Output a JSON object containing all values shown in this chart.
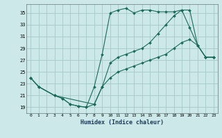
{
  "xlabel": "Humidex (Indice chaleur)",
  "background_color": "#cce8e8",
  "grid_color": "#aacccc",
  "line_color": "#1a6b5a",
  "xlim": [
    -0.5,
    23.5
  ],
  "ylim": [
    18.0,
    36.5
  ],
  "yticks": [
    19,
    21,
    23,
    25,
    27,
    29,
    31,
    33,
    35
  ],
  "xticks": [
    0,
    1,
    2,
    3,
    4,
    5,
    6,
    7,
    8,
    9,
    10,
    11,
    12,
    13,
    14,
    15,
    16,
    17,
    18,
    19,
    20,
    21,
    22,
    23
  ],
  "series1_x": [
    0,
    1,
    3,
    4,
    5,
    6,
    7,
    8,
    9,
    10,
    11,
    12,
    13,
    14,
    15,
    16,
    17,
    18,
    19,
    20,
    21,
    22,
    23
  ],
  "series1_y": [
    24.0,
    22.5,
    21.0,
    20.5,
    19.5,
    19.2,
    19.0,
    22.5,
    28.0,
    35.0,
    35.5,
    35.8,
    35.0,
    35.5,
    35.5,
    35.2,
    35.2,
    35.2,
    35.5,
    32.5,
    29.5,
    27.5,
    27.5
  ],
  "series2_x": [
    0,
    1,
    3,
    4,
    5,
    6,
    7,
    8,
    9,
    10,
    11,
    12,
    13,
    14,
    15,
    16,
    17,
    18,
    19,
    20,
    21,
    22,
    23
  ],
  "series2_y": [
    24.0,
    22.5,
    21.0,
    20.5,
    19.5,
    19.2,
    19.0,
    19.5,
    22.5,
    26.5,
    27.5,
    28.0,
    28.5,
    29.0,
    30.0,
    31.5,
    33.0,
    34.5,
    35.5,
    35.5,
    29.5,
    27.5,
    27.5
  ],
  "series3_x": [
    0,
    1,
    3,
    8,
    9,
    10,
    11,
    12,
    13,
    14,
    15,
    16,
    17,
    18,
    19,
    20,
    21,
    22,
    23
  ],
  "series3_y": [
    24.0,
    22.5,
    21.0,
    19.5,
    22.5,
    24.0,
    25.0,
    25.5,
    26.0,
    26.5,
    27.0,
    27.5,
    28.0,
    29.0,
    30.0,
    30.5,
    29.5,
    27.5,
    27.5
  ]
}
